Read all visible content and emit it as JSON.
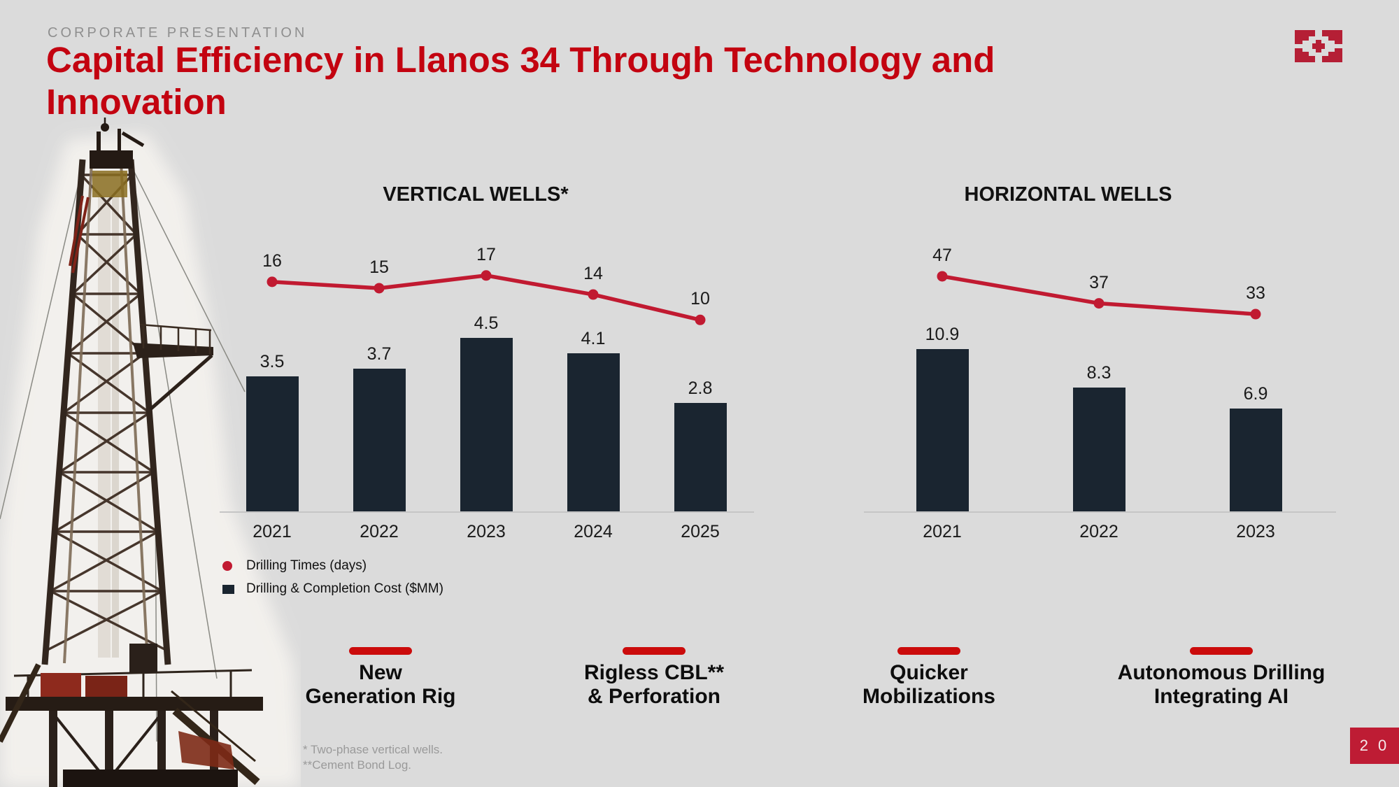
{
  "slide": {
    "eyebrow": "CORPORATE PRESENTATION",
    "title": "Capital Efficiency in Llanos 34 Through Technology and Innovation",
    "title_lines": [
      "Capital Efficiency in Llanos 34 Through Technology and",
      "Innovation"
    ],
    "page_number": "2 0",
    "logo": "geopark-logo"
  },
  "colors": {
    "background": "#DBDBDB",
    "title_red": "#C30310",
    "brand_crimson": "#BE1C34",
    "line_red": "#C11A31",
    "dash_red": "#CB0B0B",
    "bar_navy": "#1A2530",
    "axis_gray": "#C5C5C5",
    "eyebrow_gray": "#8F8F8F",
    "footnote_gray": "#9A9A9A"
  },
  "legend": {
    "items": [
      {
        "label": "Drilling Times (days)",
        "marker": "circle",
        "color": "#C11A31"
      },
      {
        "label": "Drilling & Completion Cost ($MM)",
        "marker": "square",
        "color": "#1A2530"
      }
    ]
  },
  "chart_data": [
    {
      "type": "bar+line",
      "title": "VERTICAL WELLS*",
      "categories": [
        "2021",
        "2022",
        "2023",
        "2024",
        "2025"
      ],
      "series": [
        {
          "name": "Drilling Times (days)",
          "type": "line",
          "values": [
            16,
            15,
            17,
            14,
            10
          ],
          "color": "#C11A31"
        },
        {
          "name": "Drilling & Completion Cost ($MM)",
          "type": "bar",
          "values": [
            3.5,
            3.7,
            4.5,
            4.1,
            2.8
          ],
          "color": "#1A2530"
        }
      ],
      "grid": false,
      "legend_position": "bottom-left",
      "data_labels": true
    },
    {
      "type": "bar+line",
      "title": "HORIZONTAL WELLS",
      "categories": [
        "2021",
        "2022",
        "2023"
      ],
      "series": [
        {
          "name": "Drilling Times (days)",
          "type": "line",
          "values": [
            47,
            37,
            33
          ],
          "color": "#C11A31"
        },
        {
          "name": "Drilling & Completion Cost ($MM)",
          "type": "bar",
          "values": [
            10.9,
            8.3,
            6.9
          ],
          "color": "#1A2530"
        }
      ],
      "grid": false,
      "legend_position": "none",
      "data_labels": true
    }
  ],
  "callouts": [
    {
      "line1": "New",
      "line2": "Generation Rig"
    },
    {
      "line1": "Rigless CBL**",
      "line2": "& Perforation"
    },
    {
      "line1": "Quicker",
      "line2": "Mobilizations"
    },
    {
      "line1": "Autonomous Drilling",
      "line2": "Integrating AI"
    }
  ],
  "footnotes": [
    "* Two-phase vertical wells.",
    "**Cement Bond Log."
  ]
}
